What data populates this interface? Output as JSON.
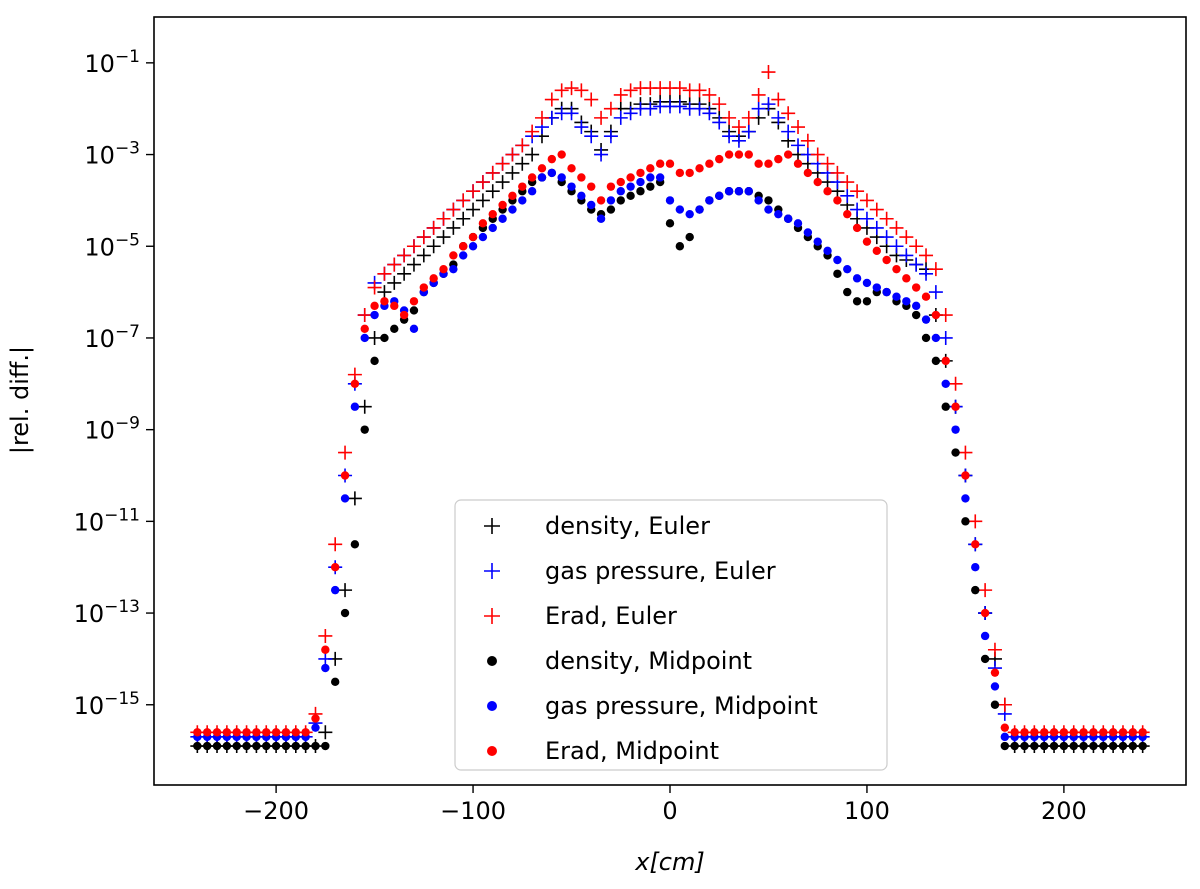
{
  "chart_data": {
    "type": "scatter",
    "title": "",
    "xlabel_main": "x",
    "xlabel_unit": "[cm]",
    "ylabel": "|rel. diff.|",
    "xlim": [
      -262,
      262
    ],
    "ylim_log10": [
      -16.75,
      -0.0
    ],
    "yscale": "log",
    "x_ticks": [
      -200,
      -100,
      0,
      100,
      200
    ],
    "x_tick_labels": [
      "−200",
      "−100",
      "0",
      "100",
      "200"
    ],
    "y_ticks_log10": [
      -1,
      -3,
      -5,
      -7,
      -9,
      -11,
      -13,
      -15
    ],
    "y_tick_base": "10",
    "y_tick_exponents": [
      "−1",
      "−3",
      "−5",
      "−7",
      "−9",
      "−11",
      "−13",
      "−15"
    ],
    "legend_position": "lower-center",
    "x_grid": [
      -240,
      -235,
      -230,
      -225,
      -220,
      -215,
      -210,
      -205,
      -200,
      -195,
      -190,
      -185,
      -180,
      -175,
      -170,
      -165,
      -160,
      -155,
      -150,
      -145,
      -140,
      -135,
      -130,
      -125,
      -120,
      -115,
      -110,
      -105,
      -100,
      -95,
      -90,
      -85,
      -80,
      -75,
      -70,
      -65,
      -60,
      -55,
      -50,
      -45,
      -40,
      -35,
      -30,
      -25,
      -20,
      -15,
      -10,
      -5,
      0,
      5,
      10,
      15,
      20,
      25,
      30,
      35,
      40,
      45,
      50,
      55,
      60,
      65,
      70,
      75,
      80,
      85,
      90,
      95,
      100,
      105,
      110,
      115,
      120,
      125,
      130,
      135,
      140,
      145,
      150,
      155,
      160,
      165,
      170,
      175,
      180,
      185,
      190,
      195,
      200,
      205,
      210,
      215,
      220,
      225,
      230,
      235,
      240
    ],
    "series": [
      {
        "name": "density, Euler",
        "marker": "plus",
        "color": "#000000",
        "log10_values": [
          -15.9,
          -15.9,
          -15.9,
          -15.9,
          -15.9,
          -15.9,
          -15.9,
          -15.9,
          -15.9,
          -15.9,
          -15.9,
          -15.9,
          -15.9,
          -15.6,
          -14.0,
          -12.5,
          -10.5,
          -8.5,
          -7.0,
          -6.0,
          -5.8,
          -5.6,
          -5.4,
          -5.2,
          -5.0,
          -4.8,
          -4.6,
          -4.4,
          -4.2,
          -4.0,
          -3.8,
          -3.6,
          -3.4,
          -3.2,
          -3.0,
          -2.6,
          -2.2,
          -2.0,
          -2.0,
          -2.3,
          -2.5,
          -2.9,
          -2.5,
          -2.0,
          -2.0,
          -1.9,
          -1.9,
          -1.85,
          -1.85,
          -1.85,
          -1.9,
          -1.9,
          -2.0,
          -2.2,
          -2.5,
          -2.6,
          -2.5,
          -2.2,
          -2.0,
          -2.3,
          -2.7,
          -3.0,
          -3.2,
          -3.4,
          -3.6,
          -3.8,
          -4.1,
          -4.4,
          -4.6,
          -4.8,
          -5.0,
          -5.2,
          -5.3,
          -5.4,
          -5.5,
          -6.5,
          -7.5,
          -8.5,
          -10.0,
          -11.5,
          -13.0,
          -14.0,
          -15.0,
          -15.9,
          -15.9,
          -15.9,
          -15.9,
          -15.9,
          -15.9,
          -15.9,
          -15.9,
          -15.9,
          -15.9,
          -15.9,
          -15.9,
          -15.9,
          -15.9
        ]
      },
      {
        "name": "gas pressure, Euler",
        "marker": "plus",
        "color": "#0000ff",
        "log10_values": [
          -15.7,
          -15.7,
          -15.7,
          -15.7,
          -15.7,
          -15.7,
          -15.7,
          -15.7,
          -15.7,
          -15.7,
          -15.7,
          -15.7,
          -15.4,
          -14.0,
          -12.0,
          -10.0,
          -8.0,
          -6.5,
          -5.8,
          -5.6,
          -5.4,
          -5.2,
          -5.0,
          -4.8,
          -4.6,
          -4.4,
          -4.2,
          -4.0,
          -3.8,
          -3.6,
          -3.4,
          -3.2,
          -3.0,
          -2.8,
          -2.6,
          -2.4,
          -2.2,
          -2.1,
          -2.1,
          -2.4,
          -2.6,
          -3.0,
          -2.6,
          -2.2,
          -2.1,
          -2.0,
          -2.0,
          -1.95,
          -1.95,
          -1.95,
          -2.0,
          -2.0,
          -2.1,
          -2.3,
          -2.6,
          -2.7,
          -2.5,
          -2.0,
          -1.9,
          -2.2,
          -2.5,
          -2.8,
          -3.0,
          -3.2,
          -3.4,
          -3.6,
          -3.9,
          -4.2,
          -4.4,
          -4.6,
          -4.8,
          -5.0,
          -5.2,
          -5.4,
          -5.6,
          -6.0,
          -7.0,
          -8.5,
          -10.0,
          -11.5,
          -13.0,
          -14.2,
          -15.2,
          -15.7,
          -15.7,
          -15.7,
          -15.7,
          -15.7,
          -15.7,
          -15.7,
          -15.7,
          -15.7,
          -15.7,
          -15.7,
          -15.7,
          -15.7,
          -15.7
        ]
      },
      {
        "name": "Erad, Euler",
        "marker": "plus",
        "color": "#ff0000",
        "log10_values": [
          -15.6,
          -15.6,
          -15.6,
          -15.6,
          -15.6,
          -15.6,
          -15.6,
          -15.6,
          -15.6,
          -15.6,
          -15.6,
          -15.6,
          -15.2,
          -13.5,
          -11.5,
          -9.5,
          -7.8,
          -6.5,
          -5.9,
          -5.6,
          -5.4,
          -5.2,
          -5.0,
          -4.8,
          -4.6,
          -4.4,
          -4.2,
          -4.0,
          -3.8,
          -3.6,
          -3.4,
          -3.2,
          -3.0,
          -2.8,
          -2.5,
          -2.2,
          -1.8,
          -1.6,
          -1.55,
          -1.6,
          -1.8,
          -2.2,
          -2.0,
          -1.7,
          -1.6,
          -1.55,
          -1.55,
          -1.55,
          -1.55,
          -1.55,
          -1.6,
          -1.6,
          -1.7,
          -1.9,
          -2.2,
          -2.4,
          -2.2,
          -1.7,
          -1.2,
          -1.8,
          -2.1,
          -2.4,
          -2.7,
          -3.0,
          -3.2,
          -3.4,
          -3.6,
          -3.8,
          -4.0,
          -4.2,
          -4.4,
          -4.6,
          -4.8,
          -5.0,
          -5.2,
          -5.5,
          -6.5,
          -8.0,
          -9.5,
          -11.0,
          -12.5,
          -13.8,
          -15.0,
          -15.6,
          -15.6,
          -15.6,
          -15.6,
          -15.6,
          -15.6,
          -15.6,
          -15.6,
          -15.6,
          -15.6,
          -15.6,
          -15.6,
          -15.6,
          -15.6
        ]
      },
      {
        "name": "density, Midpoint",
        "marker": "dot",
        "color": "#000000",
        "log10_values": [
          -15.9,
          -15.9,
          -15.9,
          -15.9,
          -15.9,
          -15.9,
          -15.9,
          -15.9,
          -15.9,
          -15.9,
          -15.9,
          -15.9,
          -15.9,
          -15.9,
          -14.5,
          -13.0,
          -11.5,
          -9.0,
          -7.5,
          -7.0,
          -6.8,
          -6.6,
          -6.4,
          -6.0,
          -5.8,
          -5.6,
          -5.4,
          -5.0,
          -4.8,
          -4.6,
          -4.4,
          -4.2,
          -4.0,
          -3.8,
          -3.6,
          -3.5,
          -3.4,
          -3.6,
          -3.8,
          -4.0,
          -4.2,
          -4.3,
          -4.2,
          -4.0,
          -3.9,
          -3.8,
          -3.7,
          -3.6,
          -4.5,
          -5.0,
          -4.8,
          -4.2,
          -4.0,
          -3.9,
          -3.8,
          -3.8,
          -3.8,
          -3.9,
          -4.0,
          -4.2,
          -4.4,
          -4.6,
          -4.8,
          -5.0,
          -5.2,
          -5.6,
          -6.0,
          -6.2,
          -6.2,
          -6.0,
          -6.0,
          -6.2,
          -6.3,
          -6.5,
          -7.0,
          -7.5,
          -8.5,
          -9.5,
          -11.0,
          -12.5,
          -14.0,
          -15.0,
          -15.9,
          -15.9,
          -15.9,
          -15.9,
          -15.9,
          -15.9,
          -15.9,
          -15.9,
          -15.9,
          -15.9,
          -15.9,
          -15.9,
          -15.9,
          -15.9,
          -15.9
        ]
      },
      {
        "name": "gas pressure, Midpoint",
        "marker": "dot",
        "color": "#0000ff",
        "log10_values": [
          -15.7,
          -15.7,
          -15.7,
          -15.7,
          -15.7,
          -15.7,
          -15.7,
          -15.7,
          -15.7,
          -15.7,
          -15.7,
          -15.7,
          -15.5,
          -14.2,
          -12.5,
          -10.5,
          -8.5,
          -7.0,
          -6.5,
          -6.3,
          -6.2,
          -6.4,
          -6.8,
          -6.0,
          -5.8,
          -5.6,
          -5.5,
          -5.2,
          -5.0,
          -4.8,
          -4.6,
          -4.4,
          -4.2,
          -4.0,
          -3.8,
          -3.5,
          -3.4,
          -3.5,
          -3.7,
          -3.9,
          -4.1,
          -4.4,
          -4.0,
          -3.8,
          -3.7,
          -3.6,
          -3.5,
          -3.5,
          -4.0,
          -4.2,
          -4.3,
          -4.2,
          -4.0,
          -3.9,
          -3.8,
          -3.8,
          -3.8,
          -4.0,
          -4.2,
          -4.3,
          -4.4,
          -4.5,
          -4.7,
          -4.9,
          -5.1,
          -5.3,
          -5.5,
          -5.7,
          -5.8,
          -5.9,
          -6.0,
          -6.1,
          -6.2,
          -6.3,
          -6.6,
          -7.0,
          -8.0,
          -9.0,
          -10.5,
          -12.0,
          -13.5,
          -14.6,
          -15.7,
          -15.7,
          -15.7,
          -15.7,
          -15.7,
          -15.7,
          -15.7,
          -15.7,
          -15.7,
          -15.7,
          -15.7,
          -15.7,
          -15.7,
          -15.7,
          -15.7
        ]
      },
      {
        "name": "Erad, Midpoint",
        "marker": "dot",
        "color": "#ff0000",
        "log10_values": [
          -15.6,
          -15.6,
          -15.6,
          -15.6,
          -15.6,
          -15.6,
          -15.6,
          -15.6,
          -15.6,
          -15.6,
          -15.6,
          -15.6,
          -15.3,
          -13.8,
          -12.0,
          -10.0,
          -8.0,
          -6.8,
          -6.3,
          -6.2,
          -6.3,
          -6.5,
          -6.2,
          -5.9,
          -5.7,
          -5.5,
          -5.2,
          -5.0,
          -4.8,
          -4.5,
          -4.3,
          -4.1,
          -3.9,
          -3.7,
          -3.5,
          -3.3,
          -3.1,
          -3.0,
          -3.3,
          -3.5,
          -3.7,
          -4.0,
          -3.7,
          -3.6,
          -3.5,
          -3.4,
          -3.3,
          -3.2,
          -3.2,
          -3.4,
          -3.4,
          -3.3,
          -3.2,
          -3.1,
          -3.0,
          -3.0,
          -3.0,
          -3.2,
          -3.2,
          -3.1,
          -3.0,
          -3.2,
          -3.4,
          -3.6,
          -3.8,
          -4.0,
          -4.3,
          -4.6,
          -4.9,
          -5.1,
          -5.3,
          -5.5,
          -5.7,
          -5.9,
          -6.1,
          -6.5,
          -7.5,
          -8.5,
          -10.0,
          -11.5,
          -13.0,
          -14.3,
          -15.5,
          -15.6,
          -15.6,
          -15.6,
          -15.6,
          -15.6,
          -15.6,
          -15.6,
          -15.6,
          -15.6,
          -15.6,
          -15.6,
          -15.6,
          -15.6,
          -15.6
        ]
      }
    ]
  }
}
